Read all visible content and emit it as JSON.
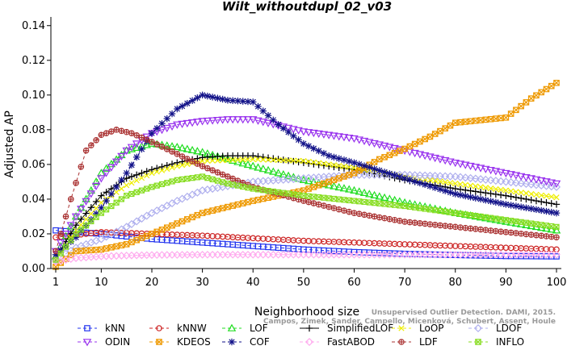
{
  "chart_data": {
    "type": "line",
    "title": "Wilt_withoutdupl_02_v03",
    "xlabel": "Neighborhood size",
    "ylabel": "Adjusted AP",
    "xlim": [
      1,
      100
    ],
    "ylim": [
      0,
      0.145
    ],
    "x_ticks": [
      1,
      10,
      20,
      30,
      40,
      50,
      60,
      70,
      80,
      90,
      100
    ],
    "y_ticks": [
      "0.00",
      "0.02",
      "0.04",
      "0.06",
      "0.08",
      "0.10",
      "0.12",
      "0.14"
    ],
    "grid": false,
    "legend_position": "bottom",
    "watermark": [
      "Campos, Zimek, Sander, Campello, Micenková, Schubert, Assent, Houle",
      "Unsupervised Outlier Detection. DAMI, 2015."
    ],
    "series": [
      {
        "name": "kNN",
        "color": "#2233ee",
        "marker": "square",
        "style": "dashed",
        "points": [
          [
            1,
            0.022
          ],
          [
            10,
            0.02
          ],
          [
            20,
            0.017
          ],
          [
            30,
            0.015
          ],
          [
            40,
            0.013
          ],
          [
            50,
            0.011
          ],
          [
            60,
            0.0095
          ],
          [
            70,
            0.0085
          ],
          [
            80,
            0.0078
          ],
          [
            90,
            0.0072
          ],
          [
            100,
            0.007
          ]
        ]
      },
      {
        "name": "kNNW",
        "color": "#cc2222",
        "marker": "circle",
        "style": "dashed",
        "points": [
          [
            1,
            0.018
          ],
          [
            10,
            0.021
          ],
          [
            20,
            0.02
          ],
          [
            30,
            0.019
          ],
          [
            40,
            0.0175
          ],
          [
            50,
            0.016
          ],
          [
            60,
            0.015
          ],
          [
            70,
            0.014
          ],
          [
            80,
            0.013
          ],
          [
            90,
            0.012
          ],
          [
            100,
            0.011
          ]
        ]
      },
      {
        "name": "LOF",
        "color": "#22dd22",
        "marker": "triangle-up",
        "style": "dashed",
        "points": [
          [
            1,
            0.007
          ],
          [
            5,
            0.03
          ],
          [
            10,
            0.055
          ],
          [
            15,
            0.068
          ],
          [
            20,
            0.072
          ],
          [
            25,
            0.07
          ],
          [
            30,
            0.067
          ],
          [
            40,
            0.059
          ],
          [
            50,
            0.051
          ],
          [
            60,
            0.045
          ],
          [
            70,
            0.038
          ],
          [
            80,
            0.032
          ],
          [
            90,
            0.027
          ],
          [
            100,
            0.022
          ]
        ]
      },
      {
        "name": "SimplifiedLOF",
        "color": "#000000",
        "marker": "plus",
        "style": "solid",
        "points": [
          [
            1,
            0.006
          ],
          [
            5,
            0.025
          ],
          [
            10,
            0.042
          ],
          [
            15,
            0.052
          ],
          [
            20,
            0.057
          ],
          [
            25,
            0.061
          ],
          [
            30,
            0.064
          ],
          [
            35,
            0.065
          ],
          [
            40,
            0.065
          ],
          [
            50,
            0.061
          ],
          [
            60,
            0.057
          ],
          [
            70,
            0.051
          ],
          [
            80,
            0.046
          ],
          [
            90,
            0.042
          ],
          [
            100,
            0.037
          ]
        ]
      },
      {
        "name": "LoOP",
        "color": "#eeee00",
        "marker": "x",
        "style": "dashed",
        "points": [
          [
            1,
            0.005
          ],
          [
            5,
            0.022
          ],
          [
            10,
            0.038
          ],
          [
            15,
            0.048
          ],
          [
            20,
            0.055
          ],
          [
            25,
            0.059
          ],
          [
            30,
            0.062
          ],
          [
            40,
            0.063
          ],
          [
            50,
            0.062
          ],
          [
            60,
            0.058
          ],
          [
            70,
            0.053
          ],
          [
            80,
            0.049
          ],
          [
            90,
            0.045
          ],
          [
            100,
            0.041
          ]
        ]
      },
      {
        "name": "LDOF",
        "color": "#b0b0ee",
        "marker": "diamond",
        "style": "dashed",
        "points": [
          [
            1,
            0.005
          ],
          [
            5,
            0.012
          ],
          [
            10,
            0.017
          ],
          [
            15,
            0.024
          ],
          [
            20,
            0.032
          ],
          [
            25,
            0.039
          ],
          [
            30,
            0.045
          ],
          [
            40,
            0.05
          ],
          [
            50,
            0.052
          ],
          [
            60,
            0.054
          ],
          [
            70,
            0.054
          ],
          [
            80,
            0.053
          ],
          [
            90,
            0.05
          ],
          [
            100,
            0.047
          ]
        ]
      },
      {
        "name": "ODIN",
        "color": "#9933ee",
        "marker": "triangle-down",
        "style": "dashed",
        "points": [
          [
            1,
            0.01
          ],
          [
            5,
            0.03
          ],
          [
            10,
            0.052
          ],
          [
            15,
            0.068
          ],
          [
            20,
            0.078
          ],
          [
            25,
            0.083
          ],
          [
            30,
            0.085
          ],
          [
            35,
            0.086
          ],
          [
            40,
            0.086
          ],
          [
            50,
            0.079
          ],
          [
            60,
            0.075
          ],
          [
            70,
            0.068
          ],
          [
            80,
            0.061
          ],
          [
            90,
            0.055
          ],
          [
            100,
            0.049
          ]
        ]
      },
      {
        "name": "KDEOS",
        "color": "#ee9900",
        "marker": "square-x",
        "style": "dashed",
        "points": [
          [
            1,
            0.001
          ],
          [
            5,
            0.01
          ],
          [
            10,
            0.011
          ],
          [
            15,
            0.014
          ],
          [
            20,
            0.02
          ],
          [
            25,
            0.026
          ],
          [
            30,
            0.032
          ],
          [
            40,
            0.039
          ],
          [
            50,
            0.045
          ],
          [
            60,
            0.055
          ],
          [
            65,
            0.063
          ],
          [
            70,
            0.069
          ],
          [
            75,
            0.076
          ],
          [
            80,
            0.084
          ],
          [
            90,
            0.087
          ],
          [
            95,
            0.098
          ],
          [
            100,
            0.107
          ]
        ]
      },
      {
        "name": "COF",
        "color": "#111188",
        "marker": "asterisk",
        "style": "dashed",
        "points": [
          [
            1,
            0.008
          ],
          [
            5,
            0.018
          ],
          [
            10,
            0.035
          ],
          [
            15,
            0.055
          ],
          [
            20,
            0.078
          ],
          [
            25,
            0.092
          ],
          [
            30,
            0.1
          ],
          [
            35,
            0.097
          ],
          [
            40,
            0.096
          ],
          [
            45,
            0.083
          ],
          [
            50,
            0.072
          ],
          [
            55,
            0.065
          ],
          [
            60,
            0.061
          ],
          [
            70,
            0.052
          ],
          [
            80,
            0.043
          ],
          [
            90,
            0.037
          ],
          [
            100,
            0.032
          ]
        ]
      },
      {
        "name": "FastABOD",
        "color": "#ffaaee",
        "marker": "diamond-small",
        "style": "dashed",
        "points": [
          [
            1,
            0.004
          ],
          [
            5,
            0.006
          ],
          [
            10,
            0.007
          ],
          [
            15,
            0.0075
          ],
          [
            20,
            0.0078
          ],
          [
            30,
            0.008
          ],
          [
            40,
            0.008
          ],
          [
            50,
            0.008
          ],
          [
            60,
            0.008
          ],
          [
            70,
            0.008
          ],
          [
            80,
            0.008
          ],
          [
            90,
            0.008
          ],
          [
            100,
            0.008
          ]
        ]
      },
      {
        "name": "LDF",
        "color": "#aa3333",
        "marker": "circle-plus",
        "style": "dashed",
        "points": [
          [
            1,
            0.01
          ],
          [
            4,
            0.04
          ],
          [
            7,
            0.068
          ],
          [
            10,
            0.077
          ],
          [
            13,
            0.08
          ],
          [
            16,
            0.078
          ],
          [
            20,
            0.073
          ],
          [
            25,
            0.066
          ],
          [
            30,
            0.059
          ],
          [
            40,
            0.047
          ],
          [
            50,
            0.039
          ],
          [
            60,
            0.032
          ],
          [
            70,
            0.027
          ],
          [
            80,
            0.024
          ],
          [
            90,
            0.021
          ],
          [
            100,
            0.018
          ]
        ]
      },
      {
        "name": "INFLO",
        "color": "#88dd22",
        "marker": "square-x-small",
        "style": "dashed",
        "points": [
          [
            1,
            0.005
          ],
          [
            5,
            0.02
          ],
          [
            10,
            0.032
          ],
          [
            15,
            0.042
          ],
          [
            20,
            0.047
          ],
          [
            25,
            0.051
          ],
          [
            30,
            0.053
          ],
          [
            35,
            0.049
          ],
          [
            40,
            0.046
          ],
          [
            50,
            0.042
          ],
          [
            60,
            0.039
          ],
          [
            70,
            0.036
          ],
          [
            80,
            0.032
          ],
          [
            90,
            0.028
          ],
          [
            100,
            0.024
          ]
        ]
      }
    ]
  }
}
